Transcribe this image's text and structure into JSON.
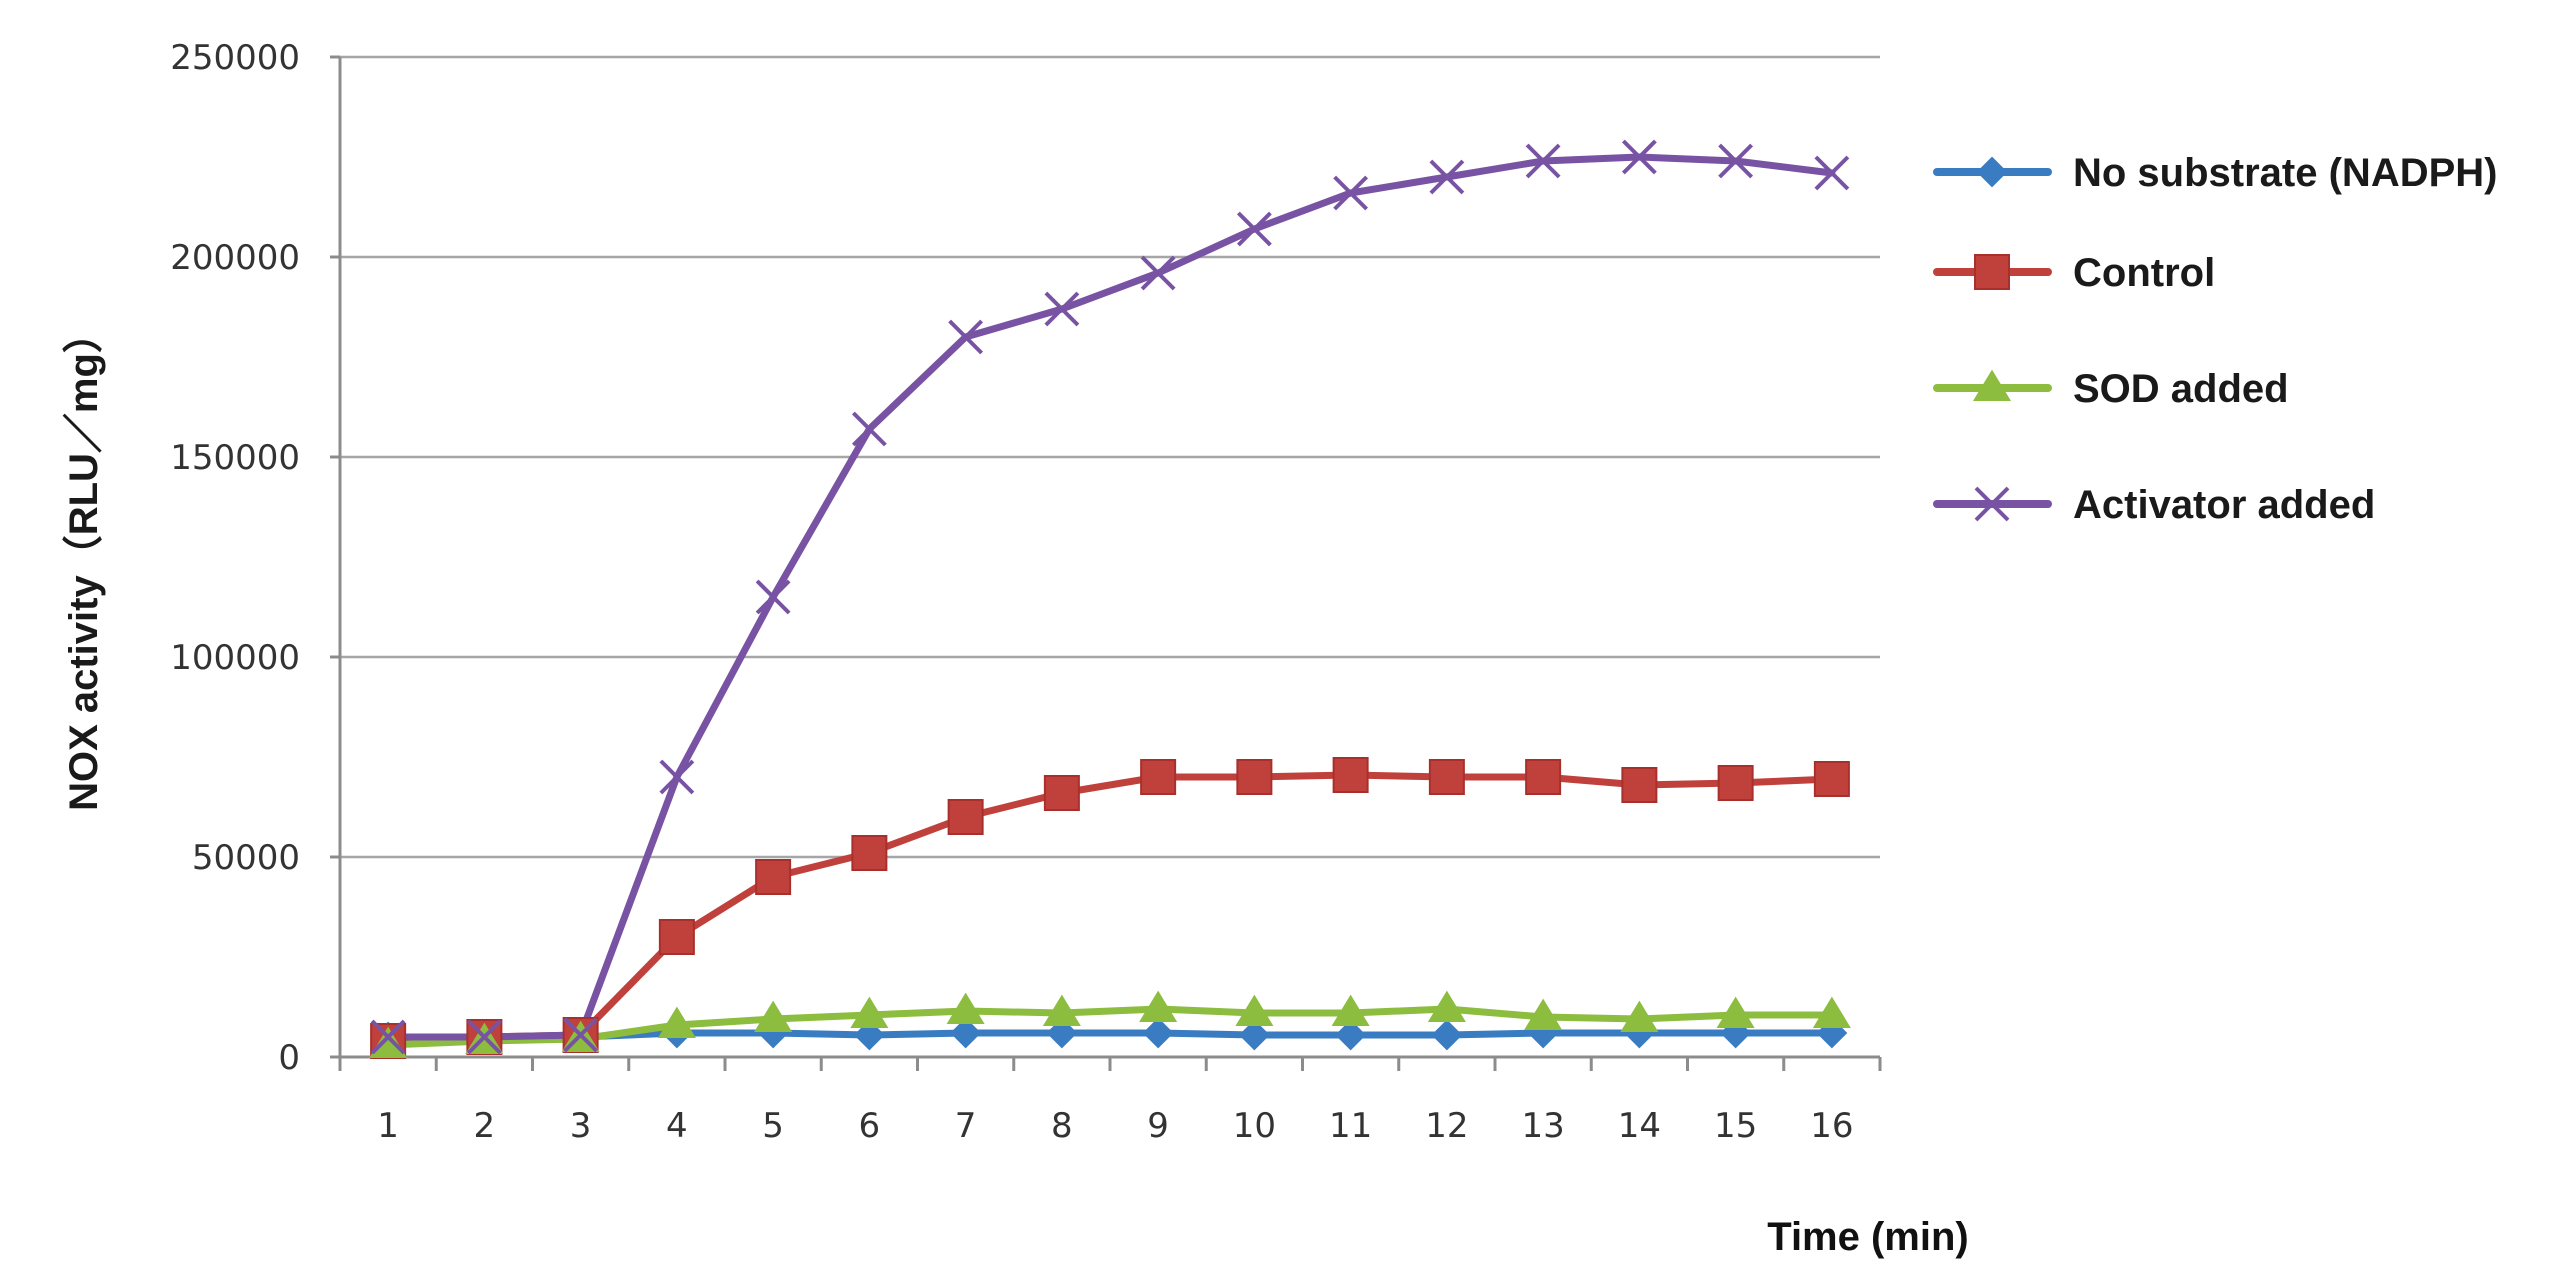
{
  "chart_data": {
    "type": "line",
    "title": "",
    "xlabel": "Time (min)",
    "ylabel": "NOX activity（RLU／mg）",
    "x": [
      1,
      2,
      3,
      4,
      5,
      6,
      7,
      8,
      9,
      10,
      11,
      12,
      13,
      14,
      15,
      16
    ],
    "ylim": [
      0,
      250000
    ],
    "yticks": [
      0,
      50000,
      100000,
      150000,
      200000,
      250000
    ],
    "grid": true,
    "legend_position": "right",
    "series": [
      {
        "name": "No substrate (NADPH)",
        "color": "#3a7cc2",
        "marker": "diamond",
        "values": [
          5000,
          5000,
          5000,
          6000,
          6000,
          5500,
          6000,
          6000,
          6000,
          5500,
          5500,
          5500,
          6000,
          6000,
          6000,
          6000
        ]
      },
      {
        "name": "Control",
        "color": "#c0403c",
        "marker": "square",
        "values": [
          4000,
          5000,
          5500,
          30000,
          45000,
          51000,
          60000,
          66000,
          70000,
          70000,
          70500,
          70000,
          70000,
          68000,
          68500,
          69500
        ]
      },
      {
        "name": "SOD added",
        "color": "#8cbd3f",
        "marker": "triangle",
        "values": [
          3000,
          4000,
          4500,
          8000,
          9500,
          10500,
          11500,
          11000,
          12000,
          11000,
          11000,
          12000,
          10000,
          9500,
          10500,
          10500
        ]
      },
      {
        "name": "Activator added",
        "color": "#7953a3",
        "marker": "x",
        "values": [
          5000,
          5000,
          5500,
          70000,
          115000,
          157000,
          180000,
          187000,
          196000,
          207000,
          216000,
          220000,
          224000,
          225000,
          224000,
          221000
        ]
      }
    ]
  }
}
